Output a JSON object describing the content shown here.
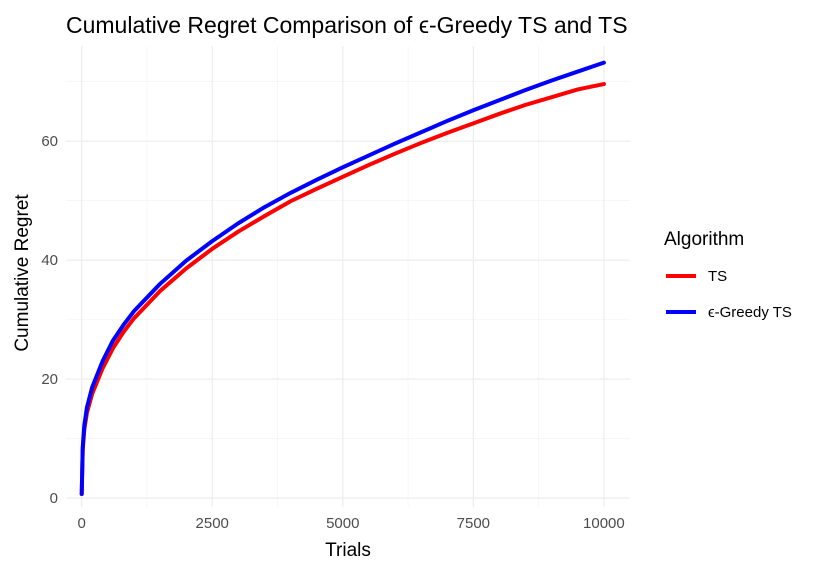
{
  "chart_data": {
    "type": "line",
    "title": "Cumulative Regret Comparison of ϵ-Greedy TS and TS",
    "xlabel": "Trials",
    "ylabel": "Cumulative Regret",
    "xlim": [
      -300,
      10500
    ],
    "ylim": [
      -1.5,
      76
    ],
    "xticks": [
      0,
      2500,
      5000,
      7500,
      10000
    ],
    "xtick_labels": [
      "0",
      "2500",
      "5000",
      "7500",
      "10000"
    ],
    "yticks": [
      0,
      20,
      40,
      60
    ],
    "ytick_labels": [
      "0",
      "20",
      "40",
      "60"
    ],
    "grid": true,
    "legend": {
      "title": "Algorithm",
      "placement": "right"
    },
    "series": [
      {
        "name": "TS",
        "color": "#ff0000",
        "x": [
          1,
          20,
          50,
          100,
          200,
          400,
          600,
          800,
          1000,
          1500,
          2000,
          2500,
          3000,
          3500,
          4000,
          4500,
          5000,
          5500,
          6000,
          6500,
          7000,
          7500,
          8000,
          8500,
          9000,
          9500,
          10000
        ],
        "y": [
          0.7,
          8.0,
          11.5,
          14.3,
          17.5,
          21.8,
          25.2,
          27.9,
          30.2,
          34.8,
          38.6,
          41.9,
          44.8,
          47.4,
          49.9,
          52.0,
          54.0,
          56.0,
          57.9,
          59.7,
          61.4,
          63.0,
          64.6,
          66.1,
          67.4,
          68.7,
          69.6
        ]
      },
      {
        "name": "ϵ-Greedy TS",
        "color": "#0000ff",
        "x": [
          1,
          20,
          50,
          100,
          200,
          400,
          600,
          800,
          1000,
          1500,
          2000,
          2500,
          3000,
          3500,
          4000,
          4500,
          5000,
          5500,
          6000,
          6500,
          7000,
          7500,
          8000,
          8500,
          9000,
          9500,
          10000
        ],
        "y": [
          0.7,
          8.5,
          12.2,
          15.2,
          18.6,
          23.0,
          26.5,
          29.1,
          31.4,
          36.0,
          39.9,
          43.2,
          46.2,
          48.9,
          51.3,
          53.5,
          55.6,
          57.6,
          59.6,
          61.5,
          63.4,
          65.2,
          66.9,
          68.6,
          70.2,
          71.7,
          73.2
        ]
      }
    ]
  }
}
